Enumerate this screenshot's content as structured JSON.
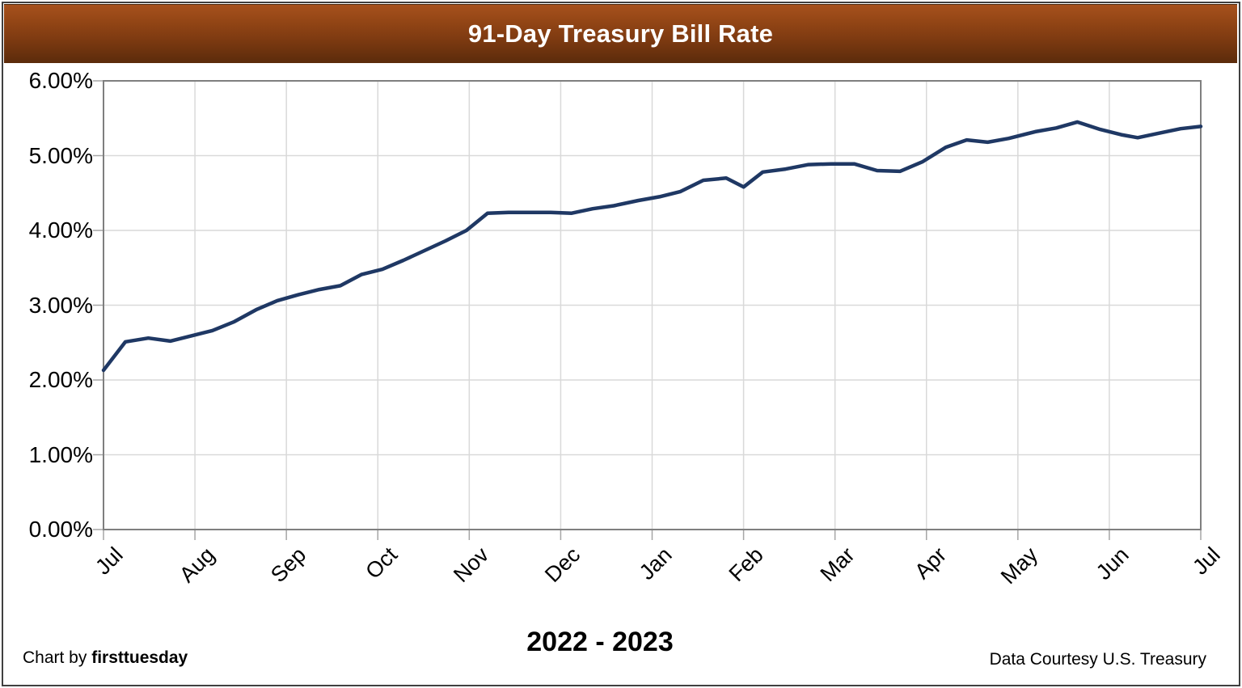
{
  "chart_data": {
    "type": "line",
    "title": "91-Day Treasury Bill Rate",
    "xlabel": "2022 - 2023",
    "ylabel": "",
    "x_tick_labels": [
      "Jul",
      "Aug",
      "Sep",
      "Oct",
      "Nov",
      "Dec",
      "Jan",
      "Feb",
      "Mar",
      "Apr",
      "May",
      "Jun",
      "Jul"
    ],
    "y_tick_labels": [
      "0.00%",
      "1.00%",
      "2.00%",
      "3.00%",
      "4.00%",
      "5.00%",
      "6.00%"
    ],
    "ylim": [
      0,
      6
    ],
    "x_month_range": [
      0,
      12
    ],
    "grid": true,
    "legend_position": "none",
    "series": [
      {
        "name": "91-Day Treasury Bill Rate",
        "units": "percent",
        "frequency": "weekly",
        "points": [
          [
            0.0,
            2.13
          ],
          [
            0.24,
            2.51
          ],
          [
            0.49,
            2.56
          ],
          [
            0.73,
            2.52
          ],
          [
            0.96,
            2.59
          ],
          [
            1.19,
            2.66
          ],
          [
            1.43,
            2.78
          ],
          [
            1.67,
            2.94
          ],
          [
            1.9,
            3.06
          ],
          [
            2.13,
            3.14
          ],
          [
            2.36,
            3.21
          ],
          [
            2.59,
            3.26
          ],
          [
            2.82,
            3.41
          ],
          [
            3.05,
            3.48
          ],
          [
            3.28,
            3.6
          ],
          [
            3.51,
            3.73
          ],
          [
            3.74,
            3.86
          ],
          [
            3.97,
            4.0
          ],
          [
            4.2,
            4.23
          ],
          [
            4.43,
            4.24
          ],
          [
            4.66,
            4.24
          ],
          [
            4.89,
            4.24
          ],
          [
            5.12,
            4.23
          ],
          [
            5.35,
            4.29
          ],
          [
            5.58,
            4.33
          ],
          [
            5.85,
            4.4
          ],
          [
            6.08,
            4.45
          ],
          [
            6.31,
            4.52
          ],
          [
            6.56,
            4.67
          ],
          [
            6.81,
            4.7
          ],
          [
            7.0,
            4.58
          ],
          [
            7.21,
            4.78
          ],
          [
            7.46,
            4.82
          ],
          [
            7.71,
            4.88
          ],
          [
            7.96,
            4.89
          ],
          [
            8.21,
            4.89
          ],
          [
            8.46,
            4.8
          ],
          [
            8.71,
            4.79
          ],
          [
            8.96,
            4.92
          ],
          [
            9.21,
            5.11
          ],
          [
            9.44,
            5.21
          ],
          [
            9.67,
            5.18
          ],
          [
            9.9,
            5.23
          ],
          [
            10.19,
            5.32
          ],
          [
            10.42,
            5.37
          ],
          [
            10.65,
            5.45
          ],
          [
            10.9,
            5.35
          ],
          [
            11.13,
            5.28
          ],
          [
            11.31,
            5.24
          ],
          [
            11.54,
            5.3
          ],
          [
            11.78,
            5.36
          ],
          [
            12.0,
            5.39
          ]
        ]
      }
    ]
  },
  "footer": {
    "left_prefix": "Chart by ",
    "left_brand": "firsttuesday",
    "right": "Data Courtesy U.S. Treasury"
  },
  "colors": {
    "line": "#1f3864",
    "gridline": "#d9d9d9",
    "tick": "#a6a6a6",
    "plot_border": "#7f7f7f",
    "frame_border": "#404040",
    "header_top": "#a6511d",
    "header_bottom": "#5b2b0b",
    "title_text": "#ffffff"
  }
}
